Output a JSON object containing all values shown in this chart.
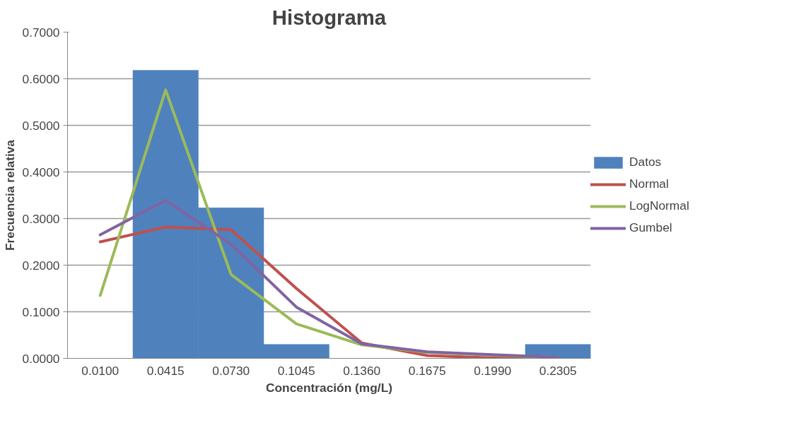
{
  "chart_data": {
    "type": "bar",
    "title": "Histograma",
    "xlabel": "Concentración (mg/L)",
    "ylabel": "Frecuencia relativa",
    "categories": [
      "0.0100",
      "0.0415",
      "0.0730",
      "0.1045",
      "0.1360",
      "0.1675",
      "0.1990",
      "0.2305"
    ],
    "series": [
      {
        "name": "Datos",
        "color": "#4f81bd",
        "values": [
          0,
          0.618,
          0.323,
          0.03,
          0,
          0,
          0,
          0.03
        ]
      },
      {
        "name": "Normal",
        "type": "line",
        "color": "#c0504d",
        "values": [
          0.25,
          0.282,
          0.276,
          0.15,
          0.033,
          0.006,
          0.001,
          0.0
        ]
      },
      {
        "name": "LogNormal",
        "type": "line",
        "color": "#9bbb59",
        "values": [
          0.135,
          0.576,
          0.18,
          0.074,
          0.029,
          0.013,
          0.007,
          0.002
        ]
      },
      {
        "name": "Gumbel",
        "type": "line",
        "color": "#8064a2",
        "values": [
          0.265,
          0.339,
          0.245,
          0.11,
          0.031,
          0.014,
          0.008,
          0.002
        ]
      }
    ],
    "ylim": [
      0,
      0.7
    ],
    "yticks": [
      {
        "value": 0,
        "label": "0.0000"
      },
      {
        "value": 0.1,
        "label": "0.1000"
      },
      {
        "value": 0.2,
        "label": "0.2000"
      },
      {
        "value": 0.3,
        "label": "0.3000"
      },
      {
        "value": 0.4,
        "label": "0.4000"
      },
      {
        "value": 0.5,
        "label": "0.5000"
      },
      {
        "value": 0.6,
        "label": "0.6000"
      },
      {
        "value": 0.7,
        "label": "0.7000"
      }
    ],
    "grid": "y",
    "legend": "right"
  }
}
